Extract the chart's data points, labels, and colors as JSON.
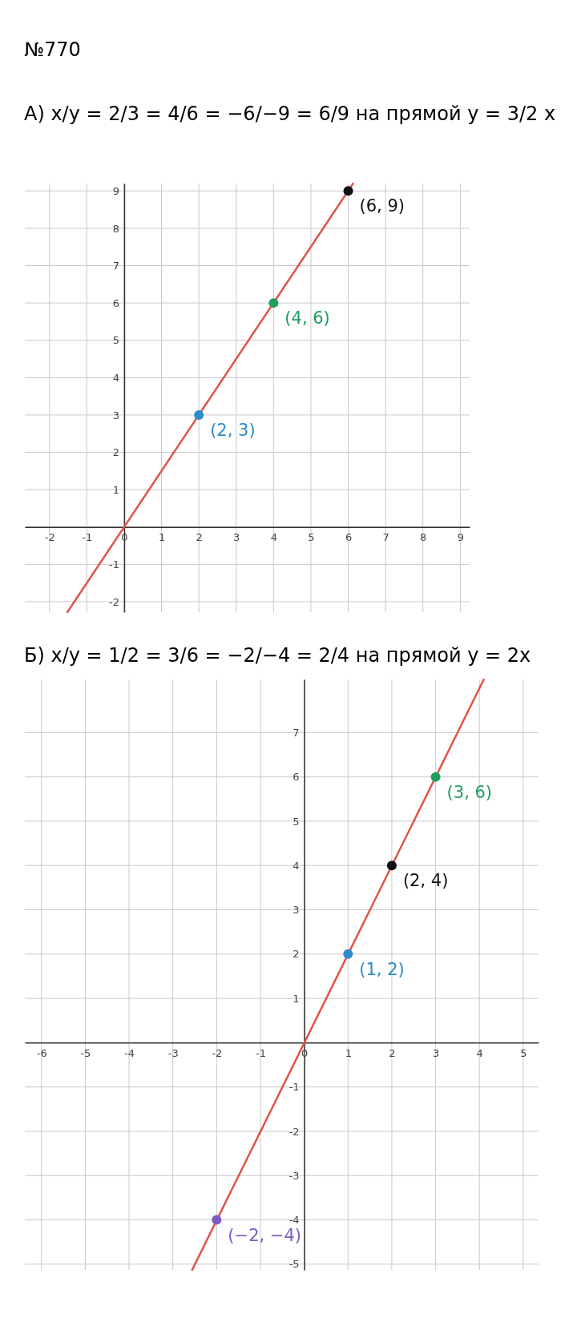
{
  "chart_data": [
    {
      "type": "line",
      "title": "А) x/y = 2/3 = 4/6 = −6/−9 = 6/9   на прямой y = 3/2 x",
      "annotations": [
        "№770"
      ],
      "xlim": [
        -2.66,
        9.25
      ],
      "ylim": [
        -2.28,
        9.2
      ],
      "xticks": [
        -2,
        -1,
        0,
        1,
        2,
        3,
        4,
        5,
        6,
        7,
        8,
        9
      ],
      "yticks": [
        -2,
        -1,
        {
          "value": 0,
          "label": null
        },
        1,
        2,
        3,
        4,
        5,
        6,
        7,
        8,
        9
      ],
      "grid": true,
      "series": [
        {
          "color": "#e0534a",
          "x": [
            -1.52,
            6.13
          ],
          "values": [
            -2.28,
            9.2
          ]
        },
        {
          "type": "scatter",
          "color": "#2e8bc9",
          "x": [
            2
          ],
          "values": [
            3
          ],
          "value_labels": [
            "(2, 3)"
          ]
        },
        {
          "type": "scatter",
          "color": "#1f9e5e",
          "x": [
            4
          ],
          "values": [
            6
          ],
          "value_labels": [
            "(4, 6)"
          ]
        },
        {
          "type": "scatter",
          "color": "#111111",
          "x": [
            6
          ],
          "values": [
            9
          ],
          "value_labels": [
            "(6, 9)"
          ]
        }
      ]
    },
    {
      "type": "line",
      "title": "Б) x/y = 1/2 = 3/6 = −2/−4 = 2/4   на прямой y = 2x",
      "xlim": [
        -6.38,
        5.35
      ],
      "ylim": [
        -5.13,
        8.2
      ],
      "xticks": [
        -6,
        -5,
        -4,
        -3,
        -2,
        -1,
        0,
        1,
        2,
        3,
        4,
        5
      ],
      "yticks": [
        -5,
        -4,
        -3,
        -2,
        -1,
        {
          "value": 0,
          "label": null
        },
        1,
        2,
        3,
        4,
        5,
        6,
        7
      ],
      "grid": true,
      "series": [
        {
          "color": "#e0534a",
          "x": [
            -2.56,
            4.1
          ],
          "values": [
            -5.13,
            8.2
          ]
        },
        {
          "type": "scatter",
          "color": "#1f9e5e",
          "x": [
            3
          ],
          "values": [
            6
          ],
          "value_labels": [
            "(3, 6)"
          ]
        },
        {
          "type": "scatter",
          "color": "#111111",
          "x": [
            2
          ],
          "values": [
            4
          ],
          "value_labels": [
            "(2, 4)"
          ]
        },
        {
          "type": "scatter",
          "color": "#2e8bc9",
          "x": [
            1
          ],
          "values": [
            2
          ],
          "value_labels": [
            "(1, 2)"
          ]
        },
        {
          "type": "scatter",
          "color": "#7d5bbf",
          "x": [
            -2
          ],
          "values": [
            -4
          ],
          "value_labels": [
            "(−2, −4)"
          ]
        }
      ]
    }
  ]
}
